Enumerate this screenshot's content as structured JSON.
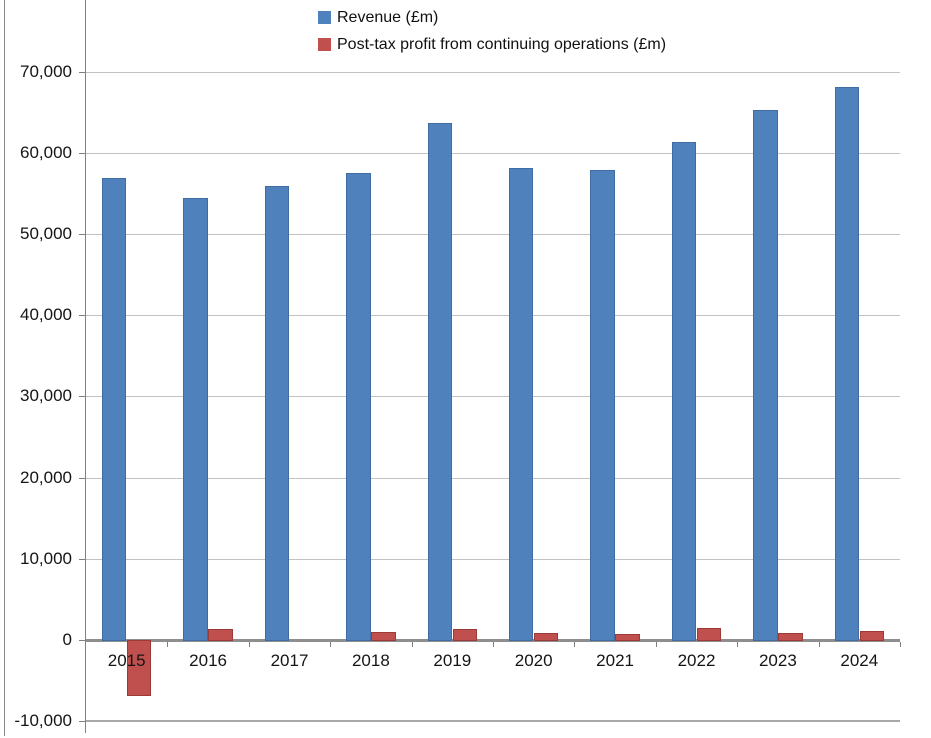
{
  "chart_data": {
    "type": "bar",
    "title": "",
    "categories": [
      "2015",
      "2016",
      "2017",
      "2018",
      "2019",
      "2020",
      "2021",
      "2022",
      "2023",
      "2024"
    ],
    "series": [
      {
        "name": "Revenue (£m)",
        "color": "#4F81BD",
        "border_color": "#3E6CA3",
        "values": [
          56900,
          54400,
          55900,
          57500,
          63700,
          58100,
          57900,
          61300,
          65300,
          68100
        ]
      },
      {
        "name": "Post-tax profit from continuing operations (£m)",
        "color": "#C0504D",
        "border_color": "#9C3A38",
        "values": [
          -6900,
          1400,
          0,
          950,
          1350,
          900,
          750,
          1500,
          850,
          1150
        ]
      }
    ],
    "ylim": [
      -10000,
      70000
    ],
    "ytick_interval": 10000,
    "ytick_labels": [
      "70,000",
      "60,000",
      "50,000",
      "40,000",
      "30,000",
      "20,000",
      "10,000",
      "0",
      "-10,000"
    ],
    "grid": true,
    "legend_position": "top-inside"
  },
  "colors": {
    "gridline": "#C2C2C2",
    "bottom_gridline": "#A8A8A8",
    "zero_axis": "#8E8E8E",
    "axis_line": "#808080",
    "chart_border": "#8A8A8A",
    "label_text": "#151515"
  }
}
